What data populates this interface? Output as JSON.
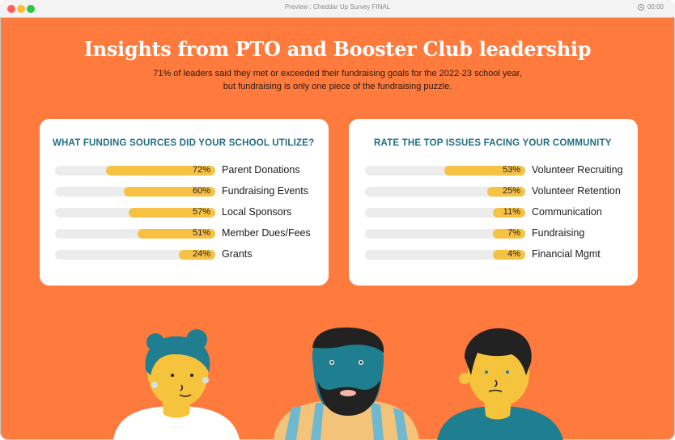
{
  "window": {
    "title": "Preview : Cheddar Up Survey FINAL",
    "timer": "00:00"
  },
  "header": {
    "headline": "Insights from PTO and Booster Club leadership",
    "sub_line_1": "71% of leaders said they met or exceeded their fundraising goals for the 2022-23 school year,",
    "sub_line_2": "but fundraising is only one piece of the fundraising puzzle."
  },
  "colors": {
    "background": "#ff7a3d",
    "bar_fill": "#f7c244",
    "bar_track": "#ececec",
    "card_title": "#1f6e84"
  },
  "funding": {
    "title": "WHAT FUNDING SOURCES DID YOUR SCHOOL UTILIZE?",
    "items": [
      {
        "label": "Parent Donations",
        "pct_text": "72%",
        "value": 72
      },
      {
        "label": "Fundraising Events",
        "pct_text": "60%",
        "value": 60
      },
      {
        "label": "Local Sponsors",
        "pct_text": "57%",
        "value": 57
      },
      {
        "label": "Member Dues/Fees",
        "pct_text": "51%",
        "value": 51
      },
      {
        "label": "Grants",
        "pct_text": "24%",
        "value": 24
      }
    ]
  },
  "issues": {
    "title": "RATE THE TOP ISSUES FACING YOUR COMMUNITY",
    "items": [
      {
        "label": "Volunteer Recruiting",
        "pct_text": "53%",
        "value": 53
      },
      {
        "label": "Volunteer Retention",
        "pct_text": "25%",
        "value": 25
      },
      {
        "label": "Communication",
        "pct_text": "11%",
        "value": 11
      },
      {
        "label": "Fundraising",
        "pct_text": "7%",
        "value": 7
      },
      {
        "label": "Financial Mgmt",
        "pct_text": "4%",
        "value": 4
      }
    ]
  },
  "illustration": {
    "figures": [
      "woman-with-blue-hair",
      "bearded-man",
      "man-with-dark-hair"
    ]
  }
}
